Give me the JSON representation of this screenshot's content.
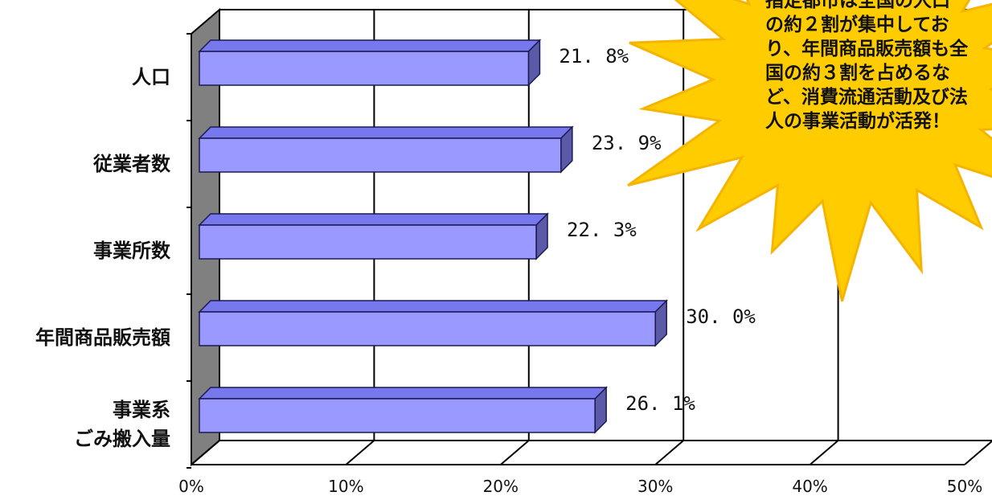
{
  "chart_data": {
    "type": "bar",
    "orientation": "horizontal",
    "categories": [
      [
        "人口"
      ],
      [
        "従業者数"
      ],
      [
        "事業所数"
      ],
      [
        "年間商品販売額"
      ],
      [
        "事業系",
        "ごみ搬入量"
      ]
    ],
    "values": [
      21.8,
      23.9,
      22.3,
      30.0,
      26.1
    ],
    "data_labels": [
      "21. 8%",
      "23. 9%",
      "22. 3%",
      "30. 0%",
      "26. 1%"
    ],
    "xticks": [
      0,
      10,
      20,
      30,
      40,
      50
    ],
    "xtick_labels": [
      "0%",
      "10%",
      "20%",
      "30%",
      "40%",
      "50%"
    ],
    "xlim": [
      0,
      50
    ],
    "grid": true,
    "three_d": true,
    "colors": {
      "bar_front": "#9999ff",
      "bar_top": "#7777ee",
      "bar_side": "#5a5aa8",
      "bar_edge": "#1a1a50",
      "back_wall": "#808080",
      "callout_fill": "#ffcc00",
      "callout_stroke": "#f5b400"
    },
    "annotation": {
      "lines": [
        "指定都市は全国の人口",
        "の約２割が集中してお",
        "り、年間商品販売額も全",
        "国の約３割を占めるな",
        "ど、消費流通活動及び法",
        "人の事業活動が活発！"
      ]
    }
  }
}
